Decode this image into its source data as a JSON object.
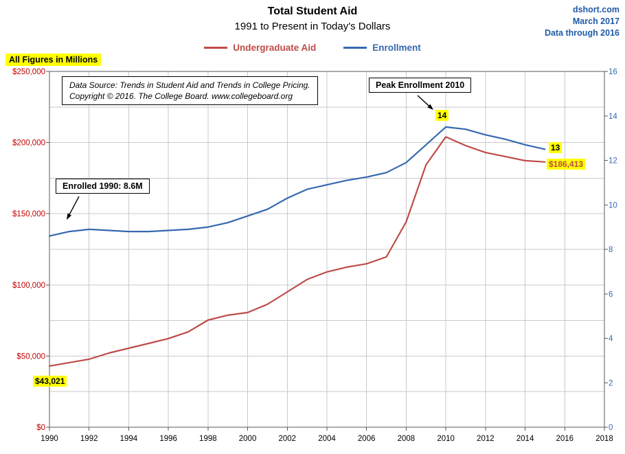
{
  "header": {
    "title": "Total Student Aid",
    "subtitle": "1991 to Present in Today's Dollars",
    "source_site": "dshort.com",
    "source_date": "March 2017",
    "source_note": "Data through 2016",
    "figures_note": "All Figures in Millions"
  },
  "colors": {
    "aid": "#BE4B48",
    "enroll": "#3568B0",
    "left_axis_text": "#C00000",
    "header_blue": "#1F5AA8",
    "highlight": "#FFFF00",
    "gridline": "#C9C9C9",
    "plot_border": "#595959"
  },
  "legend": [
    {
      "label": "Undergraduate Aid",
      "color": "#BE4B48"
    },
    {
      "label": "Enrollment",
      "color": "#3568B0"
    }
  ],
  "annotations": {
    "data_source_line1": "Data Source: Trends in Student Aid and Trends in College Pricing.",
    "data_source_line2": "Copyright © 2016. The College Board. www.collegeboard.org",
    "peak_box": "Peak Enrollment 2010",
    "enrolled_box": "Enrolled 1990: 8.6M",
    "peak_value_label": "14",
    "end_enrollment_label": "13",
    "end_aid_label": "$186,413",
    "start_aid_label": "$43,021"
  },
  "chart_data": {
    "type": "line",
    "title": "Total Student Aid",
    "subtitle": "1991 to Present in Today's Dollars",
    "x": [
      1990,
      1991,
      1992,
      1993,
      1994,
      1995,
      1996,
      1997,
      1998,
      1999,
      2000,
      2001,
      2002,
      2003,
      2004,
      2005,
      2006,
      2007,
      2008,
      2009,
      2010,
      2011,
      2012,
      2013,
      2014,
      2015
    ],
    "series": [
      {
        "name": "Undergraduate Aid",
        "axis": "left",
        "color": "#BE4B48",
        "values": [
          43021,
          45400,
          47800,
          52100,
          55500,
          58900,
          62300,
          67000,
          75300,
          78700,
          80600,
          86400,
          95100,
          103800,
          109100,
          112500,
          114800,
          119700,
          144300,
          184400,
          204000,
          197900,
          193000,
          190200,
          187300,
          186413
        ]
      },
      {
        "name": "Enrollment",
        "axis": "right",
        "color": "#3568B0",
        "values": [
          8.6,
          8.8,
          8.9,
          8.85,
          8.8,
          8.8,
          8.85,
          8.9,
          9.0,
          9.2,
          9.5,
          9.8,
          10.3,
          10.7,
          10.9,
          11.1,
          11.25,
          11.45,
          11.9,
          12.7,
          13.5,
          13.4,
          13.15,
          12.95,
          12.7,
          12.5
        ]
      }
    ],
    "left_axis": {
      "min": 0,
      "max": 250000,
      "tick_step": 50000,
      "labels": [
        "$0",
        "$50,000",
        "$100,000",
        "$150,000",
        "$200,000",
        "$250,000"
      ]
    },
    "right_axis": {
      "min": 0,
      "max": 16,
      "tick_step": 2,
      "labels": [
        "0",
        "2",
        "4",
        "6",
        "8",
        "10",
        "12",
        "14",
        "16"
      ]
    },
    "x_axis": {
      "min": 1990,
      "max": 2018,
      "tick_step": 2,
      "labels": [
        "1990",
        "1992",
        "1994",
        "1996",
        "1998",
        "2000",
        "2002",
        "2004",
        "2006",
        "2008",
        "2010",
        "2012",
        "2014",
        "2016",
        "2018"
      ]
    },
    "grid": {
      "horizontal_value_step": 25000,
      "vertical_year_step": 2
    },
    "legend_position": "top"
  }
}
